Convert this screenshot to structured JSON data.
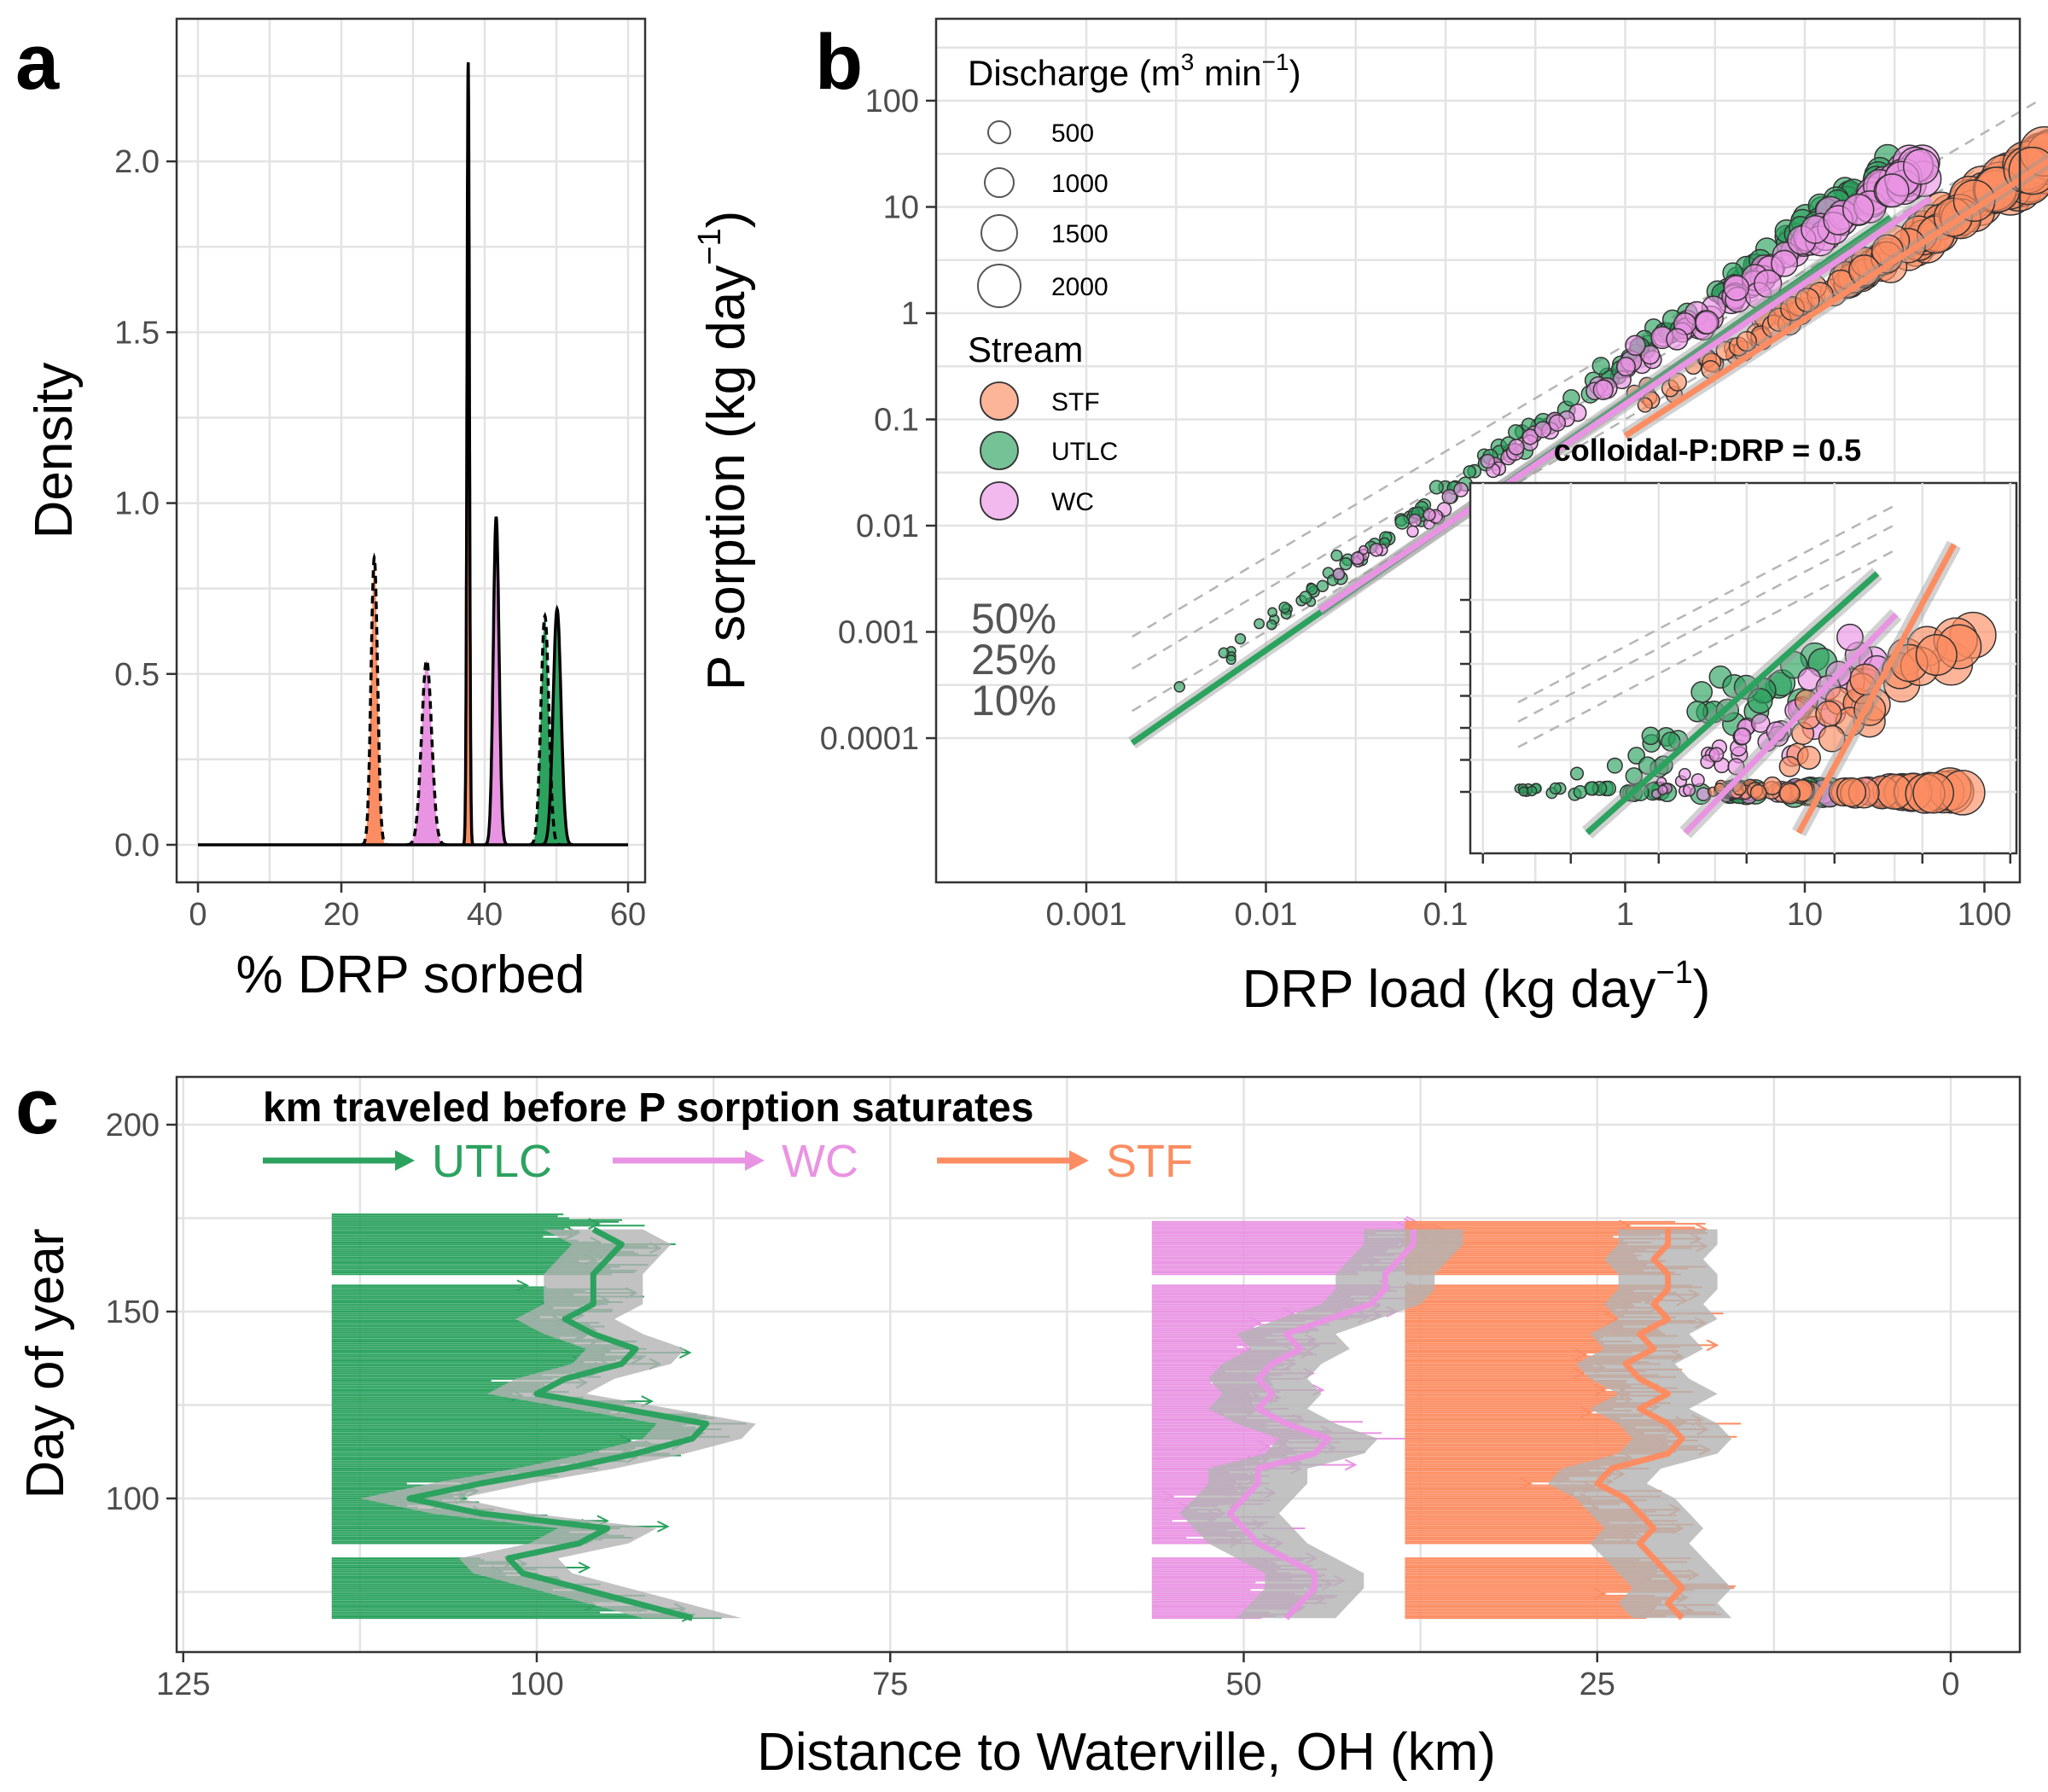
{
  "colors": {
    "STF": "#fc8d62",
    "UTLC": "#2ca25f",
    "WC": "#e994e3",
    "band": "#b3b3b3",
    "ref": "#b5b5b5"
  },
  "chart_data": [
    {
      "panel": "a",
      "type": "area",
      "xlabel": "% DRP sorbed",
      "ylabel": "Density",
      "xlim": [
        0,
        60
      ],
      "ylim": [
        0,
        2.3
      ],
      "xticks": [
        "0",
        "20",
        "40",
        "60"
      ],
      "yticks": [
        "0.0",
        "0.5",
        "1.0",
        "1.5",
        "2.0"
      ],
      "grid": true,
      "series": [
        {
          "stream": "STF",
          "line": "dashed",
          "center": 24.6,
          "peak": 0.84,
          "sd": 0.45
        },
        {
          "stream": "STF",
          "line": "solid",
          "center": 37.7,
          "peak": 2.29,
          "sd": 0.17
        },
        {
          "stream": "WC",
          "line": "dashed",
          "center": 31.9,
          "peak": 0.54,
          "sd": 0.7
        },
        {
          "stream": "WC",
          "line": "solid",
          "center": 41.6,
          "peak": 0.96,
          "sd": 0.4
        },
        {
          "stream": "UTLC",
          "line": "dashed",
          "center": 48.4,
          "peak": 0.67,
          "sd": 0.55
        },
        {
          "stream": "UTLC",
          "line": "solid",
          "center": 50.1,
          "peak": 0.69,
          "sd": 0.55
        }
      ]
    },
    {
      "panel": "b",
      "type": "scatter",
      "scale": "log-log",
      "xlabel": "DRP load (kg day",
      "xlabel_sup": "−1",
      "xlabel_end": ")",
      "ylabel": "P sorption (kg day",
      "ylabel_sup": "−1",
      "ylabel_end": ")",
      "xlim": [
        0.0002,
        700
      ],
      "ylim": [
        5e-06,
        250
      ],
      "xticks": [
        "0.001",
        "0.01",
        "0.1",
        "1",
        "10",
        "100"
      ],
      "yticks": [
        "0.0001",
        "0.001",
        "0.01",
        "0.1",
        "1",
        "10",
        "100"
      ],
      "reference_lines": [
        {
          "label": "50%",
          "fraction": 0.5
        },
        {
          "label": "25%",
          "fraction": 0.25
        },
        {
          "label": "10%",
          "fraction": 0.1
        }
      ],
      "legend_discharge": {
        "title": "Discharge (m",
        "title_sup1": "3",
        "title_mid": " min",
        "title_sup2": "−1",
        "title_end": ")",
        "values": [
          "500",
          "1000",
          "1500",
          "2000"
        ]
      },
      "legend_stream": {
        "title": "Stream",
        "items": [
          "STF",
          "UTLC",
          "WC"
        ]
      },
      "fit_lines": [
        {
          "stream": "UTLC",
          "x": [
            0.0018,
            30
          ],
          "y": [
            9e-05,
            8
          ]
        },
        {
          "stream": "WC",
          "x": [
            0.02,
            50
          ],
          "y": [
            0.0016,
            12
          ]
        },
        {
          "stream": "STF",
          "x": [
            1,
            250
          ],
          "y": [
            0.07,
            30
          ]
        }
      ],
      "series": [
        {
          "stream": "UTLC",
          "x_range": [
            0.0018,
            30
          ],
          "slope": 1.25,
          "intercept_at_1": 0.35,
          "approx_n": 140,
          "discharge_range": [
            300,
            1100
          ]
        },
        {
          "stream": "WC",
          "x_range": [
            0.02,
            50
          ],
          "slope": 1.2,
          "intercept_at_1": 0.27,
          "approx_n": 120,
          "discharge_range": [
            400,
            1500
          ]
        },
        {
          "stream": "STF",
          "x_range": [
            1,
            250
          ],
          "slope": 1.0,
          "intercept_at_1": 0.12,
          "approx_n": 130,
          "discharge_range": [
            600,
            2200
          ]
        }
      ],
      "inset": {
        "title": "colloidal-P:DRP = 0.5"
      }
    },
    {
      "panel": "c",
      "type": "line",
      "xlabel": "Distance to Waterville, OH (km)",
      "ylabel": "Day of year",
      "xlim": [
        125,
        0
      ],
      "ylim": [
        65,
        210
      ],
      "xticks": [
        "125",
        "100",
        "75",
        "50",
        "25",
        "0"
      ],
      "yticks": [
        "100",
        "150",
        "200"
      ],
      "legend_title": "km traveled before P sorption saturates",
      "legend_items": [
        "UTLC",
        "WC",
        "STF"
      ],
      "series": [
        {
          "stream": "UTLC",
          "start_km": 114.5,
          "day_range": [
            68,
            176
          ],
          "gaps": [
            [
              157,
              160
            ],
            [
              84,
              88
            ]
          ],
          "smooth": {
            "day": [
              68,
              72,
              76,
              80,
              84,
              88,
              92,
              96,
              100,
              104,
              108,
              112,
              116,
              120,
              124,
              128,
              132,
              136,
              140,
              144,
              148,
              152,
              156,
              160,
              164,
              168,
              172
            ],
            "km": [
              89,
              93,
              97,
              101,
              102,
              97,
              95,
              104,
              109,
              104,
              98,
              93,
              89,
              88,
              94,
              100,
              98,
              94,
              93,
              96,
              98,
              96,
              96,
              96,
              95,
              94,
              96
            ]
          }
        },
        {
          "stream": "WC",
          "start_km": 56.5,
          "day_range": [
            68,
            174
          ],
          "gaps": [
            [
              157,
              160
            ],
            [
              84,
              88
            ]
          ],
          "smooth": {
            "day": [
              68,
              72,
              76,
              80,
              84,
              88,
              92,
              96,
              100,
              104,
              108,
              112,
              116,
              120,
              124,
              128,
              132,
              136,
              140,
              144,
              148,
              152,
              156,
              160,
              164,
              168,
              172
            ],
            "km": [
              47,
              46,
              45,
              45,
              47,
              49,
              50,
              51,
              50,
              49,
              49,
              45,
              44,
              47,
              49,
              48,
              49,
              48,
              46,
              47,
              44,
              41,
              40,
              40,
              39,
              38,
              38
            ]
          }
        },
        {
          "stream": "STF",
          "start_km": 38.6,
          "day_range": [
            68,
            174
          ],
          "gaps": [
            [
              157,
              160
            ],
            [
              84,
              88
            ]
          ],
          "smooth": {
            "day": [
              68,
              72,
              76,
              80,
              84,
              88,
              92,
              96,
              100,
              104,
              108,
              112,
              116,
              120,
              124,
              128,
              132,
              136,
              140,
              144,
              148,
              152,
              156,
              160,
              164,
              168,
              172
            ],
            "km": [
              19,
              20,
              19,
              20,
              21,
              22,
              21,
              22,
              23,
              25,
              24,
              20,
              19,
              20,
              22,
              20,
              22,
              23,
              21,
              22,
              20,
              21,
              20,
              20,
              21,
              20,
              20
            ]
          }
        }
      ]
    }
  ]
}
